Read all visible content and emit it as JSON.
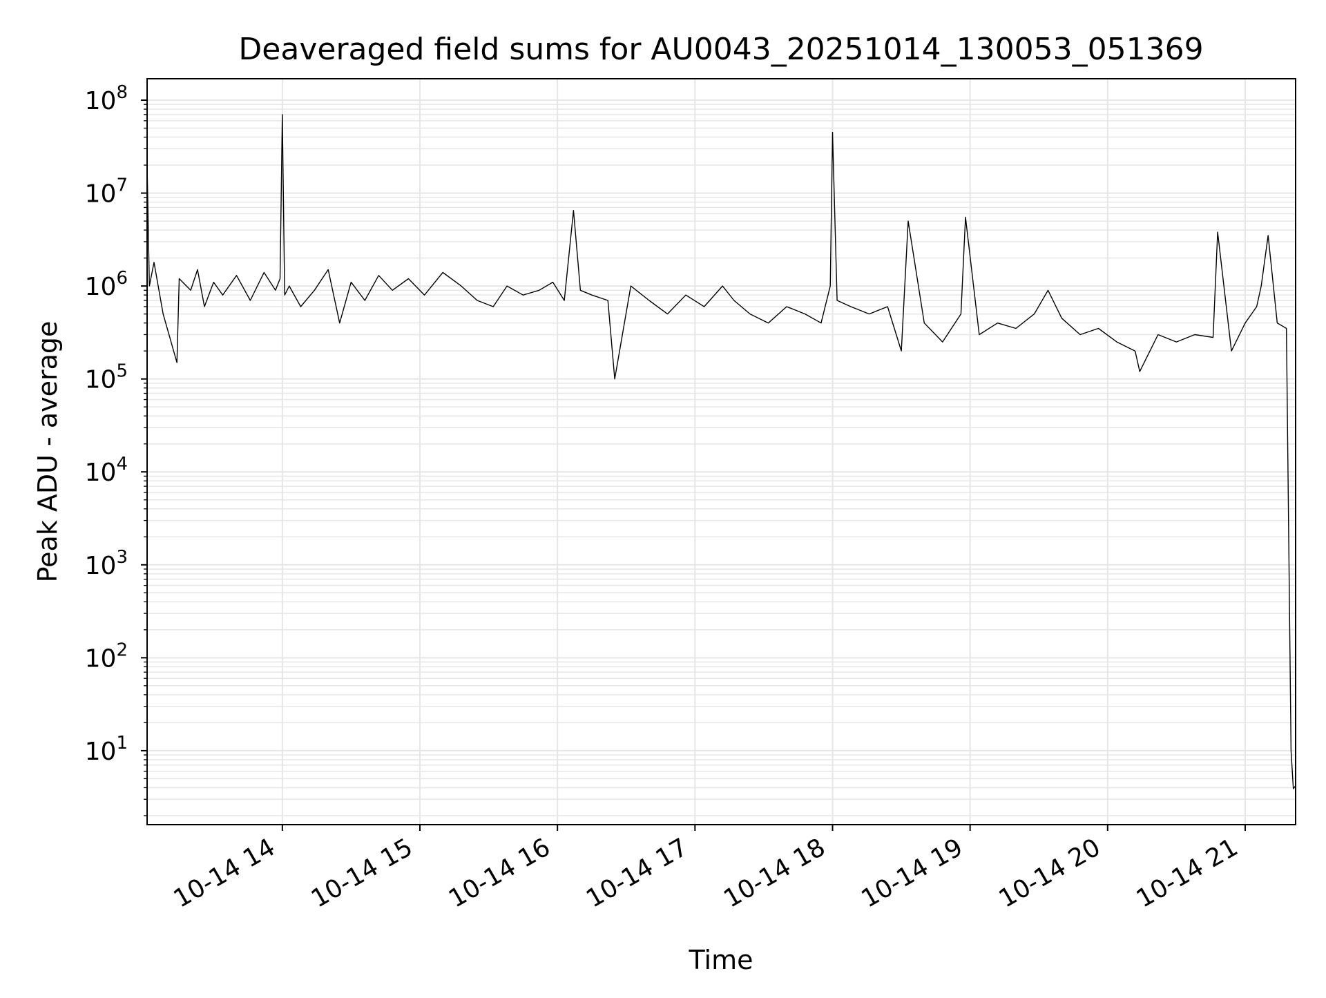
{
  "chart_data": {
    "type": "line",
    "title": "Deaveraged field sums for AU0043_20251014_130053_051369",
    "xlabel": "Time",
    "ylabel": "Peak ADU - average",
    "yscale": "log",
    "ylim": [
      1.6,
      170000000
    ],
    "xlim": [
      "2025-10-14 13:01",
      "2025-10-14 21:22"
    ],
    "grid": true,
    "line_color": "#000000",
    "grid_color": "#e6e6e6",
    "x_tick_labels": [
      "10-14 14",
      "10-14 15",
      "10-14 16",
      "10-14 17",
      "10-14 18",
      "10-14 19",
      "10-14 20",
      "10-14 21"
    ],
    "x_tick_values": [
      "2025-10-14 14:00",
      "2025-10-14 15:00",
      "2025-10-14 16:00",
      "2025-10-14 17:00",
      "2025-10-14 18:00",
      "2025-10-14 19:00",
      "2025-10-14 20:00",
      "2025-10-14 21:00"
    ],
    "y_ticks": [
      {
        "value": 10,
        "base": "10",
        "exp": "1"
      },
      {
        "value": 100,
        "base": "10",
        "exp": "2"
      },
      {
        "value": 1000,
        "base": "10",
        "exp": "3"
      },
      {
        "value": 10000,
        "base": "10",
        "exp": "4"
      },
      {
        "value": 100000,
        "base": "10",
        "exp": "5"
      },
      {
        "value": 1000000,
        "base": "10",
        "exp": "6"
      },
      {
        "value": 10000000,
        "base": "10",
        "exp": "7"
      },
      {
        "value": 100000000,
        "base": "10",
        "exp": "8"
      }
    ],
    "series": [
      {
        "x": [
          "2025-10-14 13:01",
          "2025-10-14 13:02",
          "2025-10-14 13:04",
          "2025-10-14 13:08",
          "2025-10-14 13:14",
          "2025-10-14 13:15",
          "2025-10-14 13:20",
          "2025-10-14 13:23",
          "2025-10-14 13:26",
          "2025-10-14 13:30",
          "2025-10-14 13:34",
          "2025-10-14 13:40",
          "2025-10-14 13:46",
          "2025-10-14 13:52",
          "2025-10-14 13:57",
          "2025-10-14 13:59",
          "2025-10-14 14:00",
          "2025-10-14 14:01",
          "2025-10-14 14:03",
          "2025-10-14 14:08",
          "2025-10-14 14:14",
          "2025-10-14 14:20",
          "2025-10-14 14:25",
          "2025-10-14 14:30",
          "2025-10-14 14:36",
          "2025-10-14 14:42",
          "2025-10-14 14:48",
          "2025-10-14 14:55",
          "2025-10-14 15:02",
          "2025-10-14 15:10",
          "2025-10-14 15:18",
          "2025-10-14 15:25",
          "2025-10-14 15:32",
          "2025-10-14 15:38",
          "2025-10-14 15:45",
          "2025-10-14 15:52",
          "2025-10-14 15:58",
          "2025-10-14 16:03",
          "2025-10-14 16:07",
          "2025-10-14 16:10",
          "2025-10-14 16:15",
          "2025-10-14 16:22",
          "2025-10-14 16:25",
          "2025-10-14 16:32",
          "2025-10-14 16:40",
          "2025-10-14 16:48",
          "2025-10-14 16:56",
          "2025-10-14 17:04",
          "2025-10-14 17:12",
          "2025-10-14 17:17",
          "2025-10-14 17:24",
          "2025-10-14 17:32",
          "2025-10-14 17:40",
          "2025-10-14 17:48",
          "2025-10-14 17:55",
          "2025-10-14 17:59",
          "2025-10-14 18:00",
          "2025-10-14 18:02",
          "2025-10-14 18:08",
          "2025-10-14 18:16",
          "2025-10-14 18:24",
          "2025-10-14 18:30",
          "2025-10-14 18:33",
          "2025-10-14 18:40",
          "2025-10-14 18:48",
          "2025-10-14 18:56",
          "2025-10-14 18:58",
          "2025-10-14 19:04",
          "2025-10-14 19:12",
          "2025-10-14 19:20",
          "2025-10-14 19:28",
          "2025-10-14 19:34",
          "2025-10-14 19:40",
          "2025-10-14 19:48",
          "2025-10-14 19:56",
          "2025-10-14 20:04",
          "2025-10-14 20:12",
          "2025-10-14 20:14",
          "2025-10-14 20:22",
          "2025-10-14 20:30",
          "2025-10-14 20:38",
          "2025-10-14 20:46",
          "2025-10-14 20:48",
          "2025-10-14 20:54",
          "2025-10-14 21:00",
          "2025-10-14 21:05",
          "2025-10-14 21:07",
          "2025-10-14 21:10",
          "2025-10-14 21:14",
          "2025-10-14 21:18",
          "2025-10-14 21:20",
          "2025-10-14 21:21",
          "2025-10-14 21:22"
        ],
        "y": [
          20000000,
          1000000,
          1800000,
          500000,
          150000,
          1200000,
          900000,
          1500000,
          600000,
          1100000,
          800000,
          1300000,
          700000,
          1400000,
          900000,
          1200000,
          70000000,
          800000,
          1000000,
          600000,
          900000,
          1500000,
          400000,
          1100000,
          700000,
          1300000,
          900000,
          1200000,
          800000,
          1400000,
          1000000,
          700000,
          600000,
          1000000,
          800000,
          900000,
          1100000,
          700000,
          6500000,
          900000,
          800000,
          700000,
          100000,
          1000000,
          700000,
          500000,
          800000,
          600000,
          1000000,
          700000,
          500000,
          400000,
          600000,
          500000,
          400000,
          1000000,
          45000000,
          700000,
          600000,
          500000,
          600000,
          200000,
          5000000,
          400000,
          250000,
          500000,
          5500000,
          300000,
          400000,
          350000,
          500000,
          900000,
          450000,
          300000,
          350000,
          250000,
          200000,
          120000,
          300000,
          250000,
          300000,
          280000,
          3800000,
          200000,
          400000,
          600000,
          1000000,
          3500000,
          400000,
          350000,
          10,
          3.9,
          4.2
        ]
      }
    ]
  }
}
